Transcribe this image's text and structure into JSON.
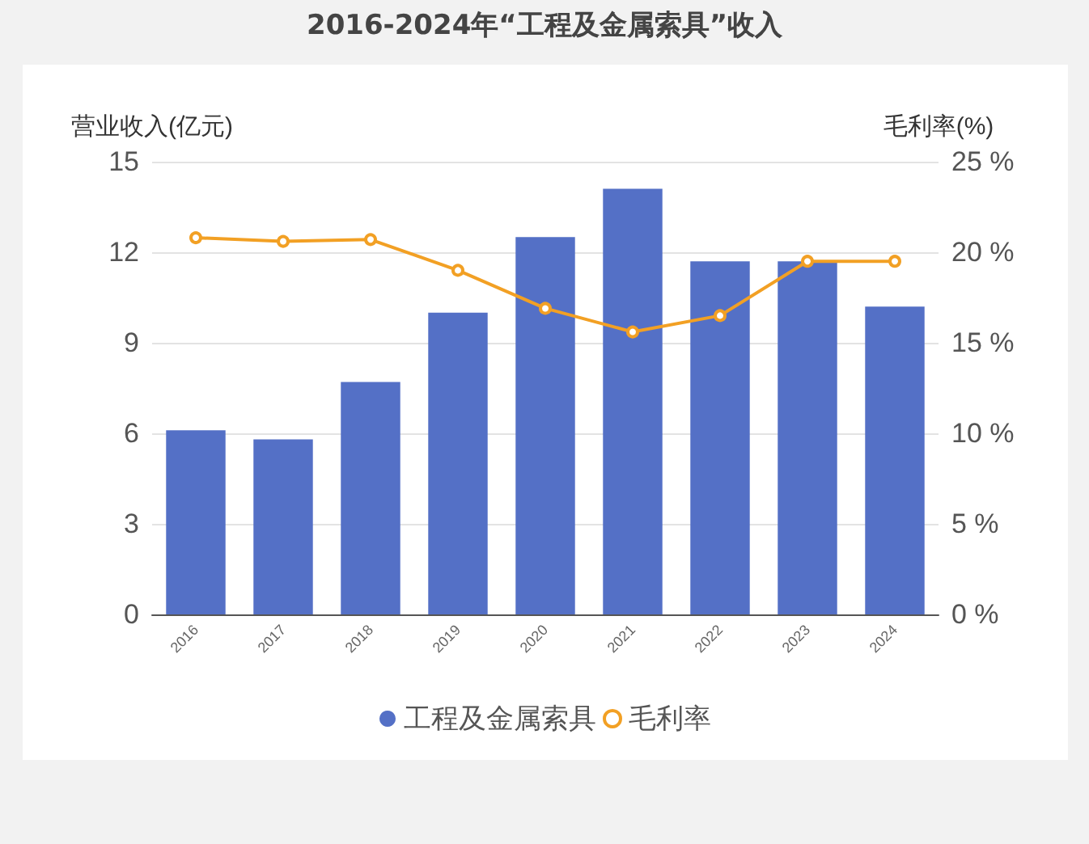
{
  "chart_data": {
    "type": "bar",
    "title": "2016-2024年“工程及金属索具”收入",
    "ylabel": "营业收入(亿元)",
    "y2label": "毛利率(%)",
    "categories": [
      "2016",
      "2017",
      "2018",
      "2019",
      "2020",
      "2021",
      "2022",
      "2023",
      "2024"
    ],
    "series": [
      {
        "name": "工程及金属索具",
        "color": "#5470c6",
        "values": [
          6.1,
          5.8,
          7.7,
          10.0,
          12.5,
          14.1,
          11.7,
          11.7,
          10.2
        ]
      },
      {
        "name": "毛利率",
        "type": "line",
        "axis": "y2",
        "color": "#f2a024",
        "values": [
          20.8,
          20.6,
          20.7,
          19.0,
          16.9,
          15.6,
          16.5,
          19.5,
          19.5
        ]
      }
    ],
    "ylim": [
      0,
      15
    ],
    "yticks": [
      0,
      3,
      6,
      9,
      12,
      15
    ],
    "y2lim": [
      0,
      25
    ],
    "y2ticks": [
      {
        "value": 0,
        "label": "0 %"
      },
      {
        "value": 5,
        "label": "5 %"
      },
      {
        "value": 10,
        "label": "10 %"
      },
      {
        "value": 15,
        "label": "15 %"
      },
      {
        "value": 20,
        "label": "20 %"
      },
      {
        "value": 25,
        "label": "25 %"
      }
    ],
    "grid": "y",
    "legend": "bottom",
    "marker": "circle"
  }
}
